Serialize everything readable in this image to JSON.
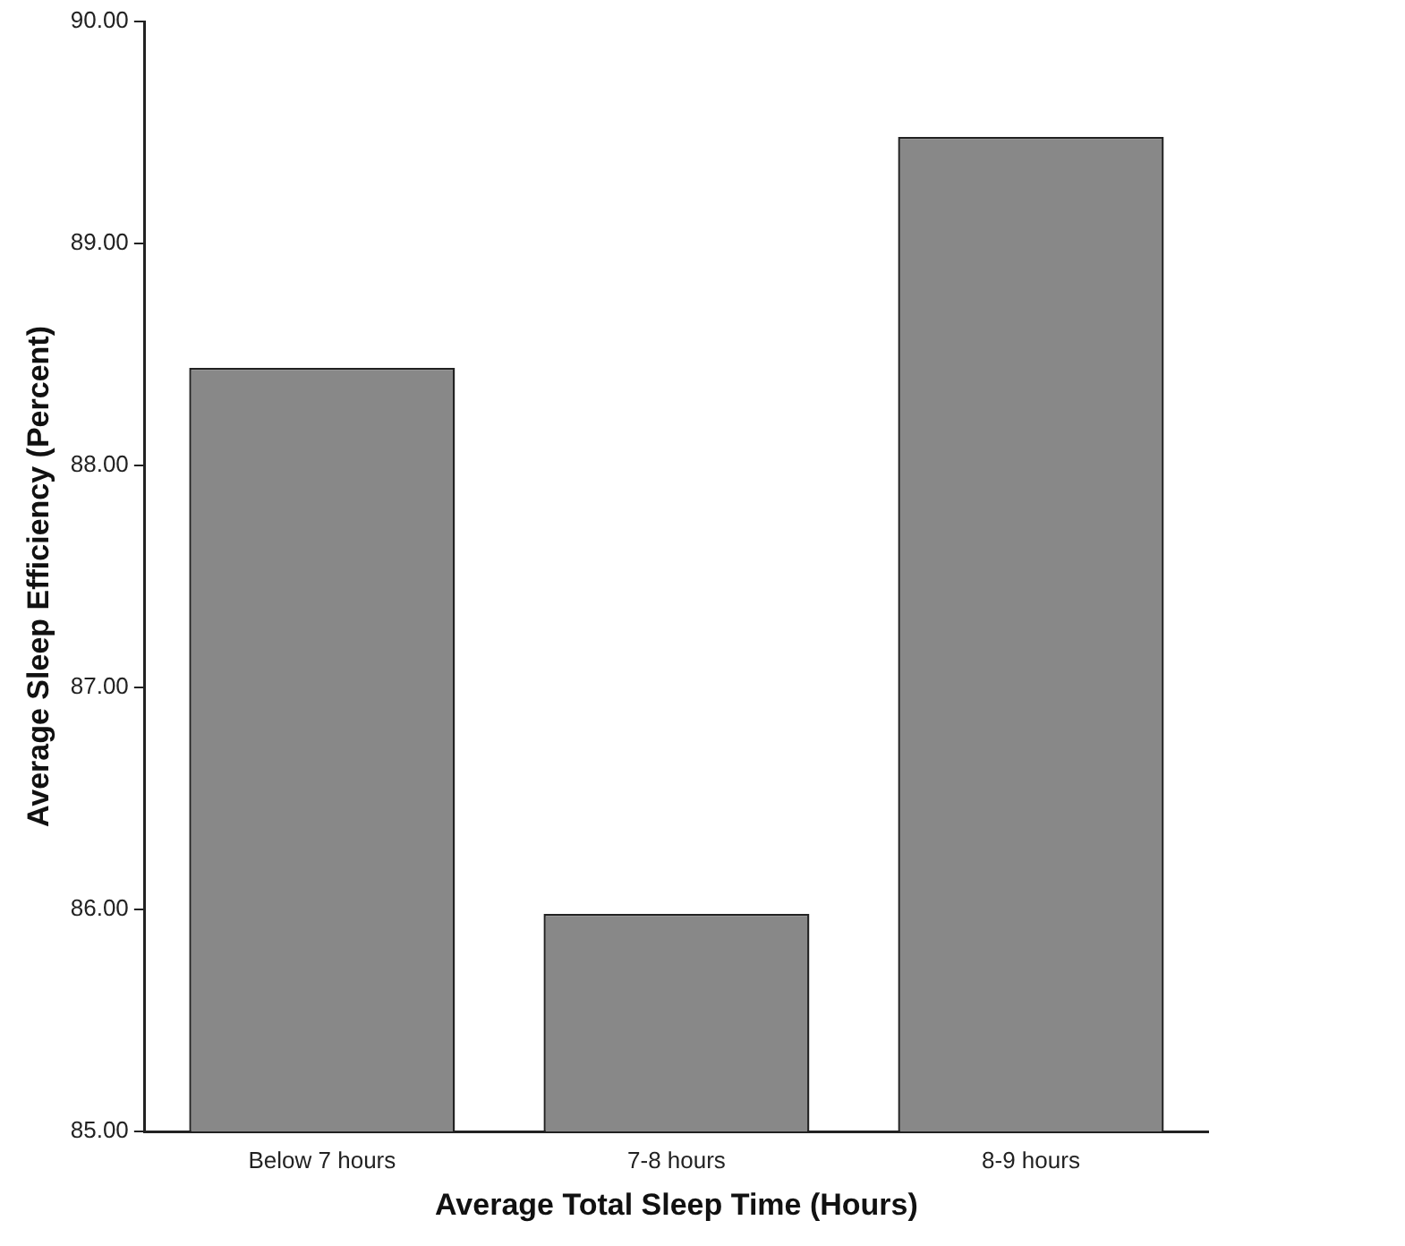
{
  "chart_data": {
    "type": "bar",
    "xlabel": "Average Total Sleep Time (Hours)",
    "ylabel": "Average Sleep Efficiency (Percent)",
    "categories": [
      "Below 7 hours",
      "7-8 hours",
      "8-9 hours"
    ],
    "values": [
      88.44,
      85.98,
      89.48
    ],
    "color": "#888888",
    "ylim": [
      85,
      90
    ],
    "yticks": [
      {
        "value": 85,
        "label": "85.00"
      },
      {
        "value": 86,
        "label": "86.00"
      },
      {
        "value": 87,
        "label": "87.00"
      },
      {
        "value": 88,
        "label": "88.00"
      },
      {
        "value": 89,
        "label": "89.00"
      },
      {
        "value": 90,
        "label": "90.00"
      }
    ],
    "grid": false,
    "legend": false
  }
}
